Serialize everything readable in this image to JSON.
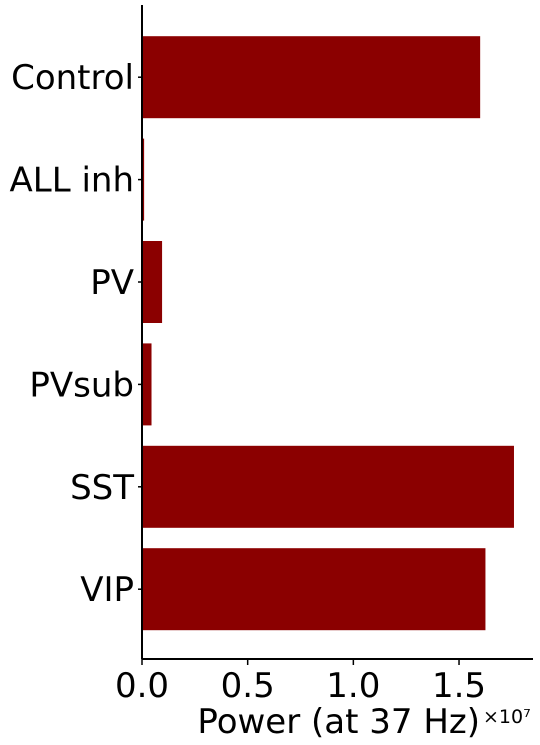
{
  "chart_data": {
    "type": "bar",
    "orientation": "horizontal",
    "categories": [
      "Control",
      "ALL inh",
      "PV",
      "PVsub",
      "SST",
      "VIP"
    ],
    "values": [
      16000000,
      100000,
      950000,
      450000,
      17600000,
      16250000
    ],
    "bar_color": "#8b0000",
    "xlabel": "Power (at 37 Hz)",
    "x_multiplier_label": "×10⁷",
    "x_scale": 10000000,
    "xlim": [
      0,
      18500000
    ],
    "x_ticks": [
      0,
      5000000,
      10000000,
      15000000
    ],
    "x_tick_labels": [
      "0.0",
      "0.5",
      "1.0",
      "1.5"
    ],
    "grid": false,
    "legend": "none"
  }
}
